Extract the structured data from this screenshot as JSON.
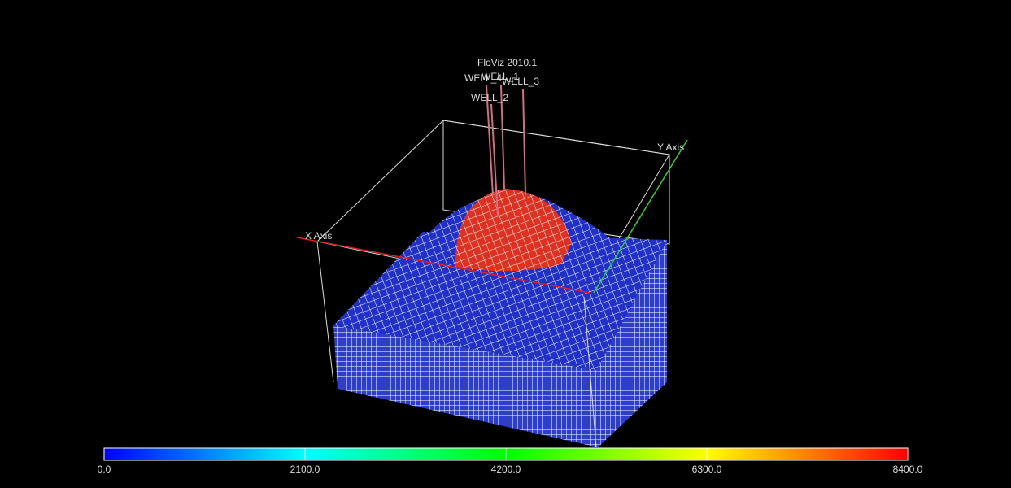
{
  "app": {
    "title": "FloViz 2010.1"
  },
  "wells": [
    "WELL_4",
    "WELL_1",
    "WELL_3",
    "WELL_2"
  ],
  "axes": {
    "x": "X Axis",
    "y": "Y Axis"
  },
  "colorbar": {
    "range": [
      0,
      8400
    ],
    "ticks": [
      {
        "value": 0,
        "label": "0.0"
      },
      {
        "value": 2100,
        "label": "2100.0"
      },
      {
        "value": 4200,
        "label": "4200.0"
      },
      {
        "value": 6300,
        "label": "6300.0"
      },
      {
        "value": 8400,
        "label": "8400.0"
      }
    ],
    "colors": [
      "#0000ff",
      "#00ffff",
      "#00ff00",
      "#ffff00",
      "#ff0000"
    ]
  }
}
